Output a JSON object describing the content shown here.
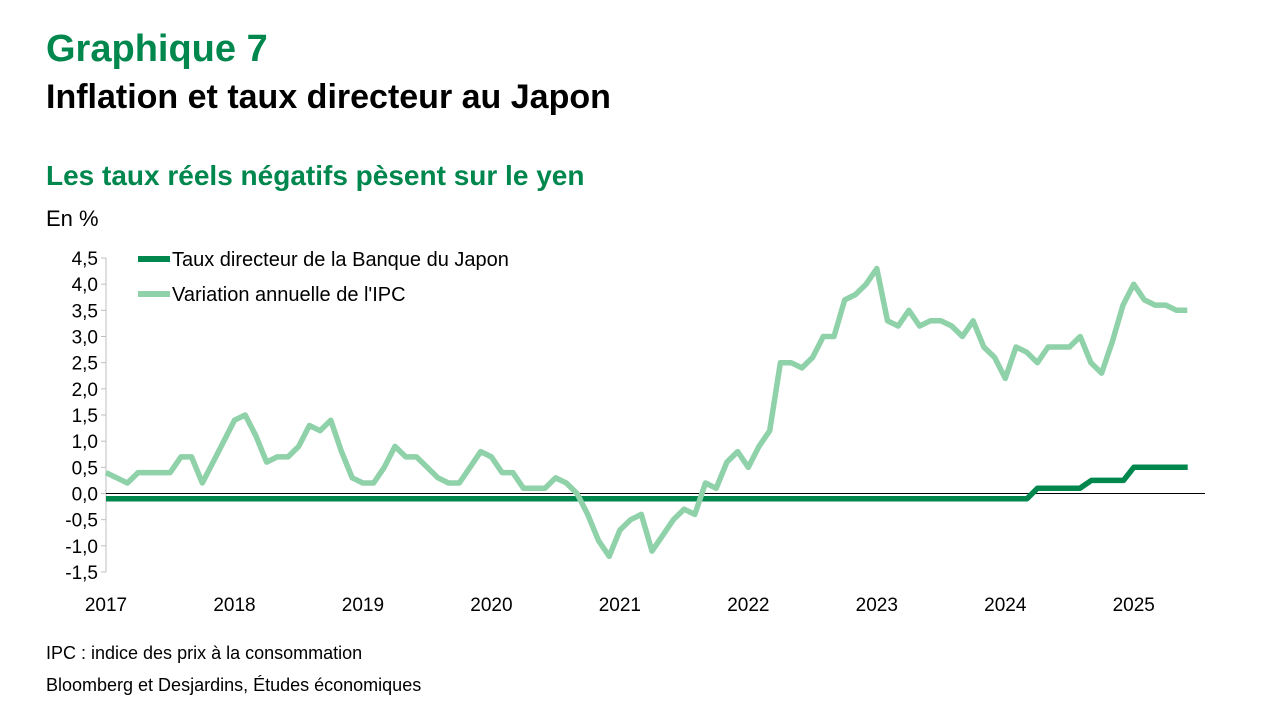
{
  "header": {
    "kicker": "Graphique 7",
    "title": "Inflation et taux directeur au Japon",
    "subtitle": "Les taux réels négatifs pèsent sur le yen",
    "unit": "En %"
  },
  "footer": {
    "note": "IPC : indice des prix à la consommation",
    "source": "Bloomberg et Desjardins, Études économiques"
  },
  "colors": {
    "accent": "#00874e",
    "policy_rate": "#00874e",
    "cpi": "#8fd1a9"
  },
  "chart_data": {
    "type": "line",
    "title": "Les taux réels négatifs pèsent sur le yen",
    "ylabel": "En %",
    "ylim": [
      -1.5,
      4.5
    ],
    "xlim": [
      2017.0,
      2025.5
    ],
    "y_ticks": [
      4.5,
      4.0,
      3.5,
      3.0,
      2.5,
      2.0,
      1.5,
      1.0,
      0.5,
      0.0,
      -0.5,
      -1.0,
      -1.5
    ],
    "y_tick_labels": [
      "4,5",
      "4,0",
      "3,5",
      "3,0",
      "2,5",
      "2,0",
      "1,5",
      "1,0",
      "0,5",
      "0,0",
      "-0,5",
      "-1,0",
      "-1,5"
    ],
    "x_ticks": [
      2017,
      2018,
      2019,
      2020,
      2021,
      2022,
      2023,
      2024,
      2025
    ],
    "x_tick_labels": [
      "2017",
      "2018",
      "2019",
      "2020",
      "2021",
      "2022",
      "2023",
      "2024",
      "2025"
    ],
    "grid": false,
    "legend_position": "top-left",
    "series": [
      {
        "name": "Taux directeur de la Banque du Japon",
        "color": "#00874e",
        "points": [
          [
            2017.0,
            -0.1
          ],
          [
            2024.17,
            -0.1
          ],
          [
            2024.25,
            0.1
          ],
          [
            2024.58,
            0.1
          ],
          [
            2024.67,
            0.25
          ],
          [
            2024.92,
            0.25
          ],
          [
            2025.0,
            0.5
          ],
          [
            2025.42,
            0.5
          ]
        ]
      },
      {
        "name": "Variation annuelle de l'IPC",
        "color": "#8fd1a9",
        "x_start": 2017.0,
        "x_step": 0.08333,
        "values": [
          0.4,
          0.3,
          0.2,
          0.4,
          0.4,
          0.4,
          0.4,
          0.7,
          0.7,
          0.2,
          0.6,
          1.0,
          1.4,
          1.5,
          1.1,
          0.6,
          0.7,
          0.7,
          0.9,
          1.3,
          1.2,
          1.4,
          0.8,
          0.3,
          0.2,
          0.2,
          0.5,
          0.9,
          0.7,
          0.7,
          0.5,
          0.3,
          0.2,
          0.2,
          0.5,
          0.8,
          0.7,
          0.4,
          0.4,
          0.1,
          0.1,
          0.1,
          0.3,
          0.2,
          0.0,
          -0.4,
          -0.9,
          -1.2,
          -0.7,
          -0.5,
          -0.4,
          -1.1,
          -0.8,
          -0.5,
          -0.3,
          -0.4,
          0.2,
          0.1,
          0.6,
          0.8,
          0.5,
          0.9,
          1.2,
          2.5,
          2.5,
          2.4,
          2.6,
          3.0,
          3.0,
          3.7,
          3.8,
          4.0,
          4.3,
          3.3,
          3.2,
          3.5,
          3.2,
          3.3,
          3.3,
          3.2,
          3.0,
          3.3,
          2.8,
          2.6,
          2.2,
          2.8,
          2.7,
          2.5,
          2.8,
          2.8,
          2.8,
          3.0,
          2.5,
          2.3,
          2.9,
          3.6,
          4.0,
          3.7,
          3.6,
          3.6,
          3.5,
          3.5
        ]
      }
    ]
  }
}
